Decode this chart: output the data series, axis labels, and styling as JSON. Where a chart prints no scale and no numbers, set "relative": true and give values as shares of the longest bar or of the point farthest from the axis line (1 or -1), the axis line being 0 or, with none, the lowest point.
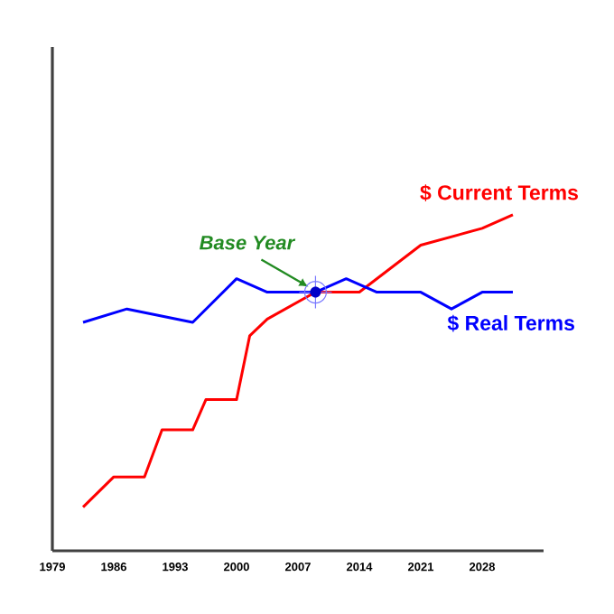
{
  "chart_data": {
    "type": "line",
    "relative": true,
    "legend": false,
    "marker": "none",
    "grid": false,
    "xlim": [
      1979,
      2035
    ],
    "xticks": [
      1979,
      1986,
      1993,
      2000,
      2007,
      2014,
      2021,
      2028
    ],
    "annotations": [
      {
        "text": "Base Year",
        "x": 2009,
        "y": 0.77
      }
    ],
    "series": [
      {
        "name": "$ Current Terms",
        "color": "#ff0000",
        "x": [
          1982.5,
          1986,
          1989.5,
          1991.5,
          1995,
          1996.5,
          2000,
          2001.5,
          2003.5,
          2009,
          2014,
          2021,
          2028,
          2031.5
        ],
        "values": [
          0.13,
          0.22,
          0.22,
          0.36,
          0.36,
          0.45,
          0.45,
          0.64,
          0.69,
          0.77,
          0.77,
          0.91,
          0.96,
          1
        ]
      },
      {
        "name": "$ Real Terms",
        "color": "#0000ff",
        "x": [
          1982.5,
          1987.5,
          1995,
          2000,
          2003.5,
          2009,
          2012.5,
          2016,
          2021,
          2024.5,
          2028,
          2031.5
        ],
        "values": [
          0.68,
          0.72,
          0.68,
          0.81,
          0.77,
          0.77,
          0.81,
          0.77,
          0.77,
          0.72,
          0.77,
          0.77
        ]
      }
    ]
  }
}
